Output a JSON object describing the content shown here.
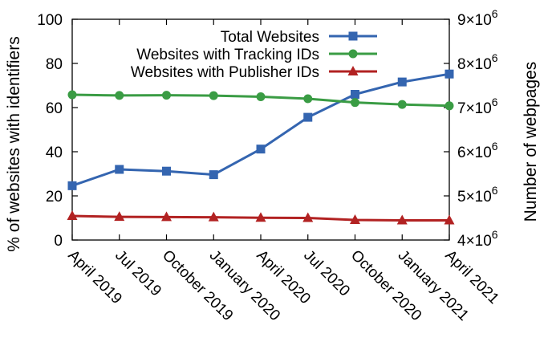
{
  "chart_data": {
    "type": "line",
    "categories": [
      "April 2019",
      "Jul 2019",
      "October 2019",
      "January 2020",
      "April 2020",
      "Jul 2020",
      "October 2020",
      "January 2021",
      "April 2021"
    ],
    "y_left": {
      "label": "% of websites with identifiers",
      "range": [
        0,
        100
      ],
      "ticks": [
        "0",
        "20",
        "40",
        "60",
        "80",
        "100"
      ]
    },
    "y_right": {
      "label": "Number of webpages",
      "range": [
        4000000,
        9000000
      ],
      "ticks": [
        {
          "base": "4×10",
          "exp": "6"
        },
        {
          "base": "5×10",
          "exp": "6"
        },
        {
          "base": "6×10",
          "exp": "6"
        },
        {
          "base": "7×10",
          "exp": "6"
        },
        {
          "base": "8×10",
          "exp": "6"
        },
        {
          "base": "9×10",
          "exp": "6"
        }
      ]
    },
    "series": [
      {
        "name": "Total Websites",
        "axis": "right",
        "color": "#3465b0",
        "marker": "square",
        "values": [
          5230000,
          5600000,
          5560000,
          5480000,
          6060000,
          6780000,
          7300000,
          7580000,
          7760000
        ]
      },
      {
        "name": "Websites with Tracking IDs",
        "axis": "left",
        "color": "#3a9c44",
        "marker": "circle",
        "values": [
          65.8,
          65.5,
          65.6,
          65.4,
          64.9,
          64.0,
          62.3,
          61.4,
          60.8
        ]
      },
      {
        "name": "Websites with Publisher IDs",
        "axis": "left",
        "color": "#b22222",
        "marker": "triangle",
        "values": [
          10.9,
          10.5,
          10.4,
          10.3,
          10.1,
          10.0,
          9.1,
          8.9,
          8.9
        ]
      }
    ],
    "legend_position": "top-right",
    "grid": false
  }
}
